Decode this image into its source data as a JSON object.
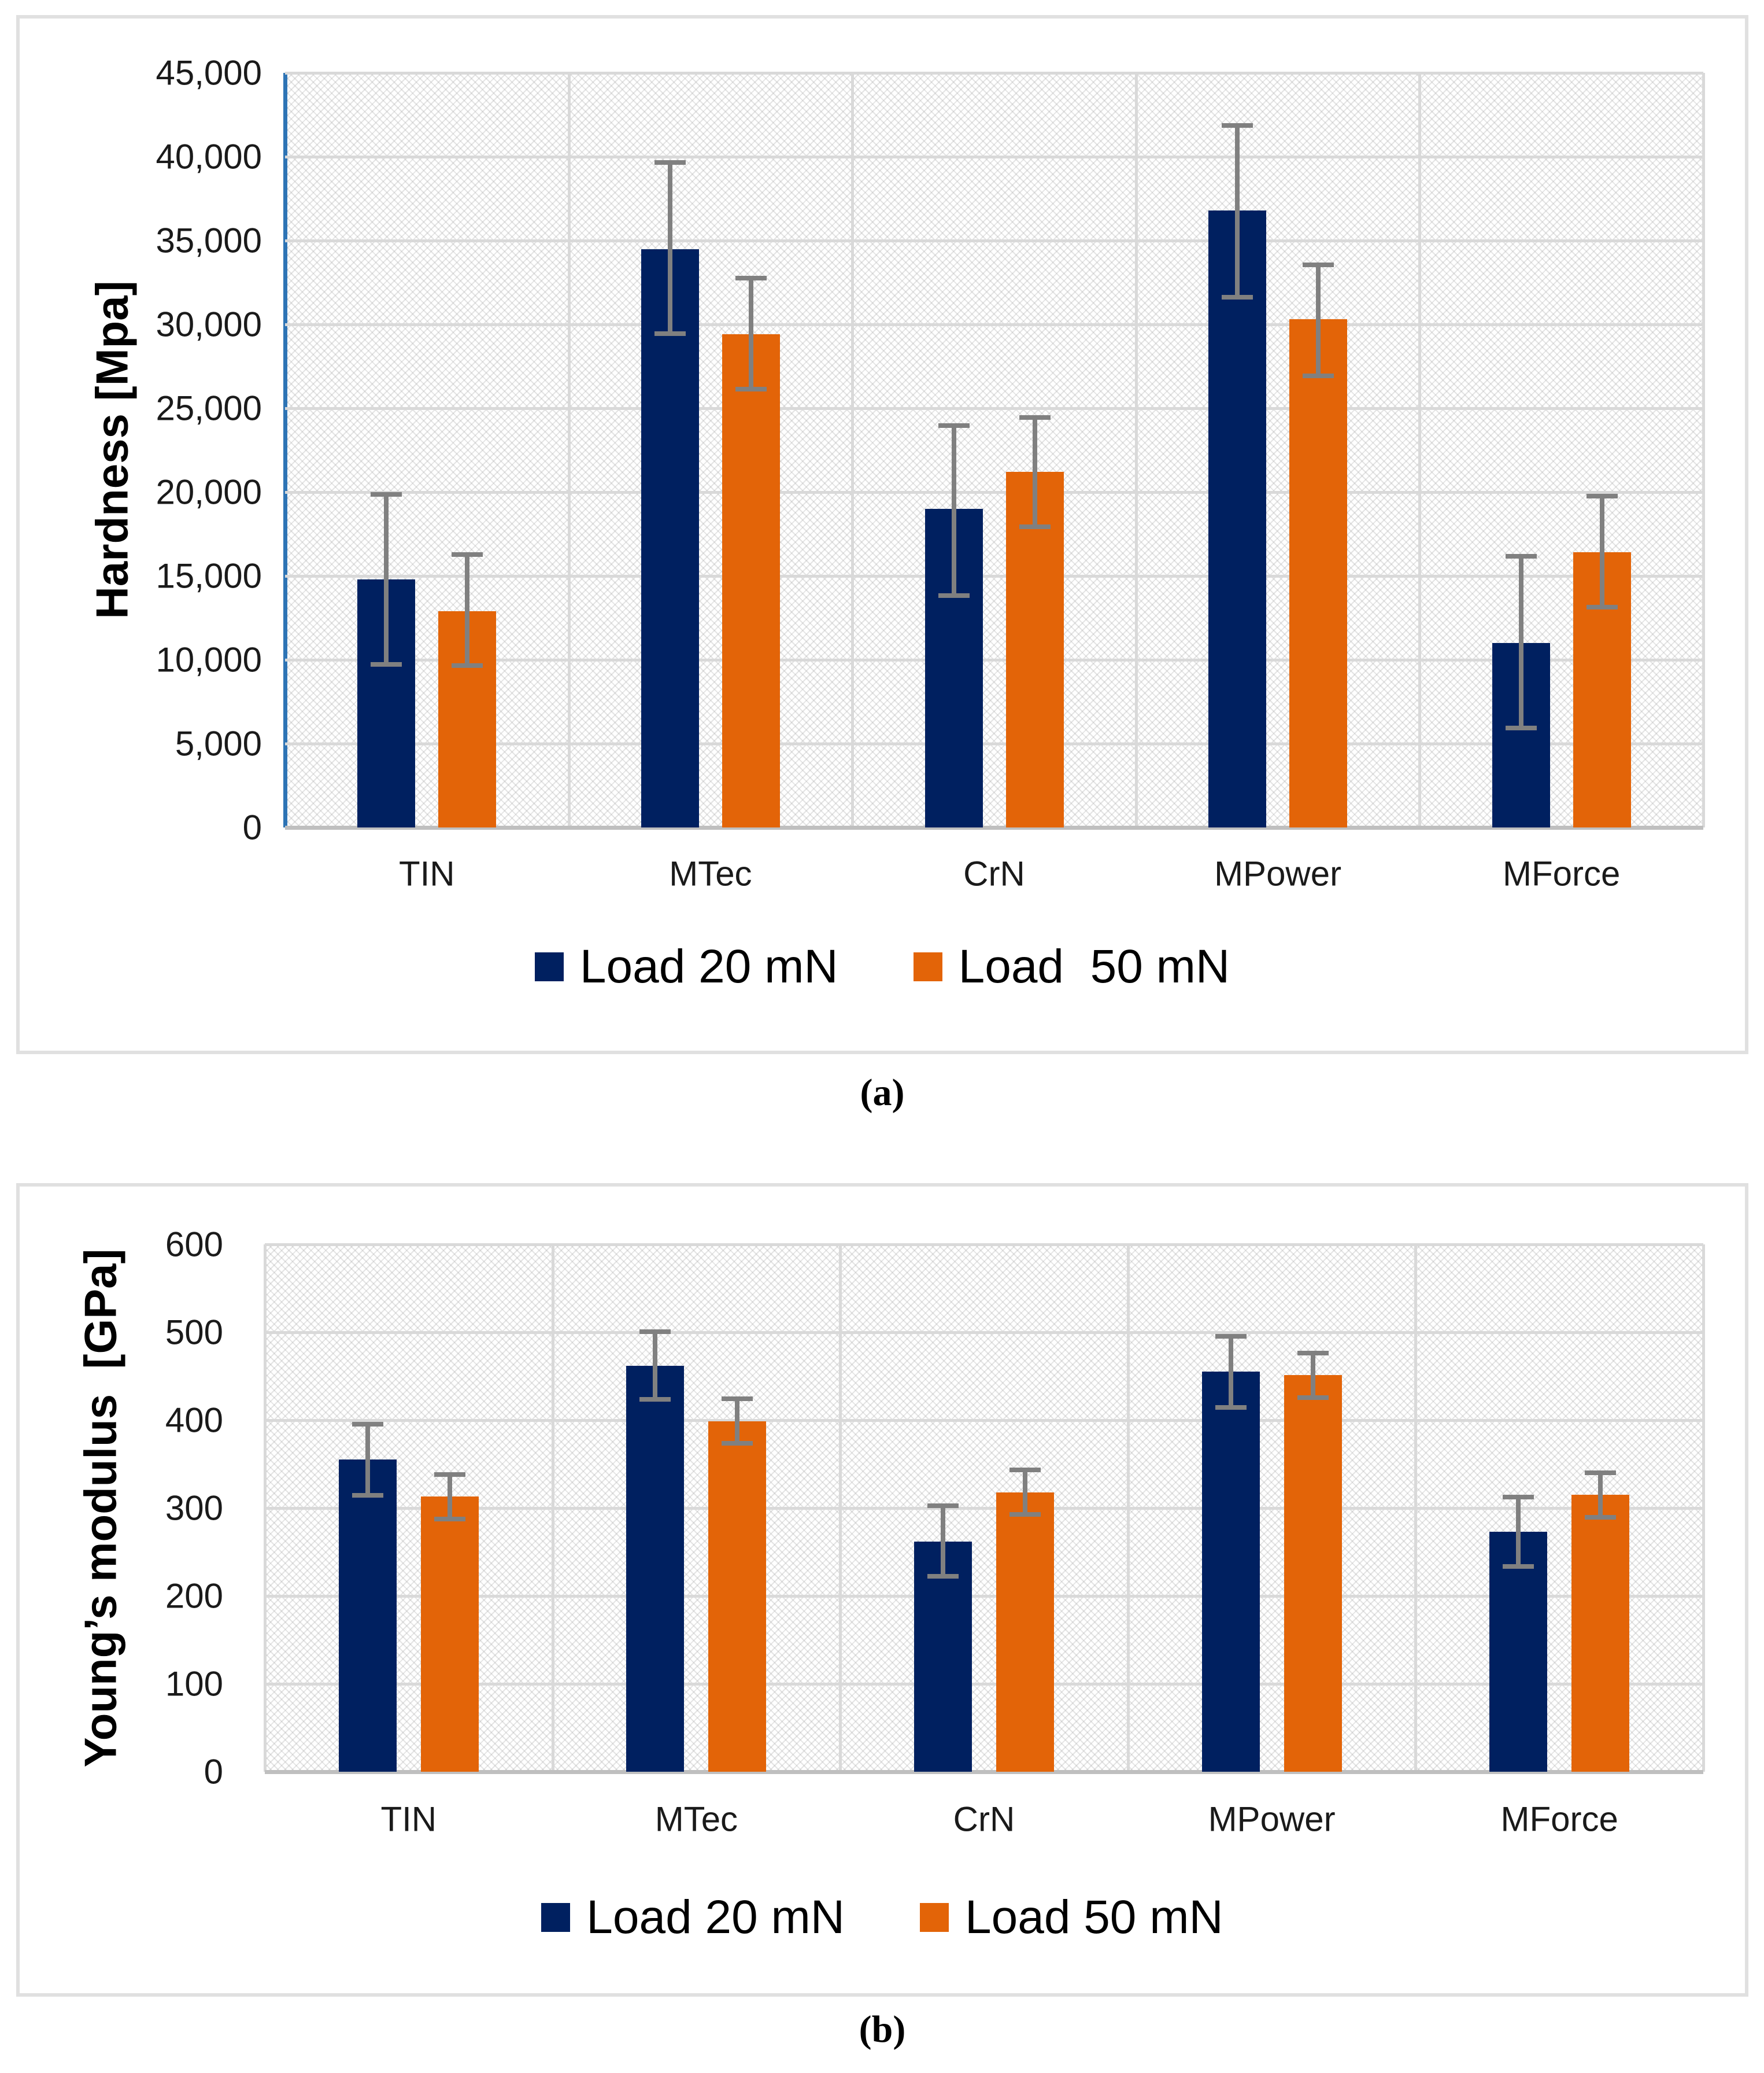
{
  "figure": {
    "captions": {
      "a": "(a)",
      "b": "(b)"
    }
  },
  "colors": {
    "load20": "#002060",
    "load50": "#E36408",
    "error_bar": "#808080",
    "gridline": "#D9D9D9",
    "baseline": "#BFBFBF",
    "axis_line_blue": "#2E74B5",
    "panel_border": "#E0E0E0",
    "tick_text": "#1a1a1a"
  },
  "chart_data": [
    {
      "type": "bar",
      "panel": "a",
      "ylabel": "Hardness [Mpa]",
      "xlabel": "",
      "ylim": [
        0,
        45000
      ],
      "ytick_step": 5000,
      "yticks": [
        "0",
        "5,000",
        "10,000",
        "15,000",
        "20,000",
        "25,000",
        "30,000",
        "35,000",
        "40,000",
        "45,000"
      ],
      "categories": [
        "TIN",
        "MTec",
        "CrN",
        "MPower",
        "MForce"
      ],
      "grid": "horizontal major gridlines + vertical category boundaries, on",
      "plot_background": "fine light-gray diagonal crosshatch",
      "legend_position": "bottom-center",
      "series": [
        {
          "name": "Load 20 mN",
          "color_key": "load20",
          "values": [
            14800,
            34500,
            19000,
            36800,
            11000
          ],
          "err_up": [
            5200,
            5300,
            5100,
            5200,
            5300
          ],
          "err_dn": [
            5200,
            5200,
            5300,
            5300,
            5200
          ]
        },
        {
          "name": "Load  50 mN",
          "color_key": "load50",
          "values": [
            12900,
            29400,
            21200,
            30300,
            16400
          ],
          "err_up": [
            3500,
            3500,
            3400,
            3400,
            3500
          ],
          "err_dn": [
            3400,
            3400,
            3400,
            3500,
            3400
          ]
        }
      ]
    },
    {
      "type": "bar",
      "panel": "b",
      "ylabel": "Young’s modulus  [GPa]",
      "xlabel": "",
      "ylim": [
        0,
        600
      ],
      "ytick_step": 100,
      "yticks": [
        "0",
        "100",
        "200",
        "300",
        "400",
        "500",
        "600"
      ],
      "categories": [
        "TIN",
        "MTec",
        "CrN",
        "MPower",
        "MForce"
      ],
      "grid": "horizontal major gridlines + vertical category boundaries, on",
      "plot_background": "fine light-gray diagonal crosshatch",
      "legend_position": "bottom-center",
      "series": [
        {
          "name": "Load 20 mN",
          "color_key": "load20",
          "values": [
            355,
            462,
            262,
            455,
            273
          ],
          "err_up": [
            43,
            41,
            43,
            43,
            42
          ],
          "err_dn": [
            43,
            41,
            42,
            43,
            42
          ]
        },
        {
          "name": "Load 50 mN",
          "color_key": "load50",
          "values": [
            313,
            399,
            318,
            451,
            315
          ],
          "err_up": [
            28,
            28,
            28,
            28,
            28
          ],
          "err_dn": [
            28,
            28,
            28,
            28,
            28
          ]
        }
      ]
    }
  ]
}
